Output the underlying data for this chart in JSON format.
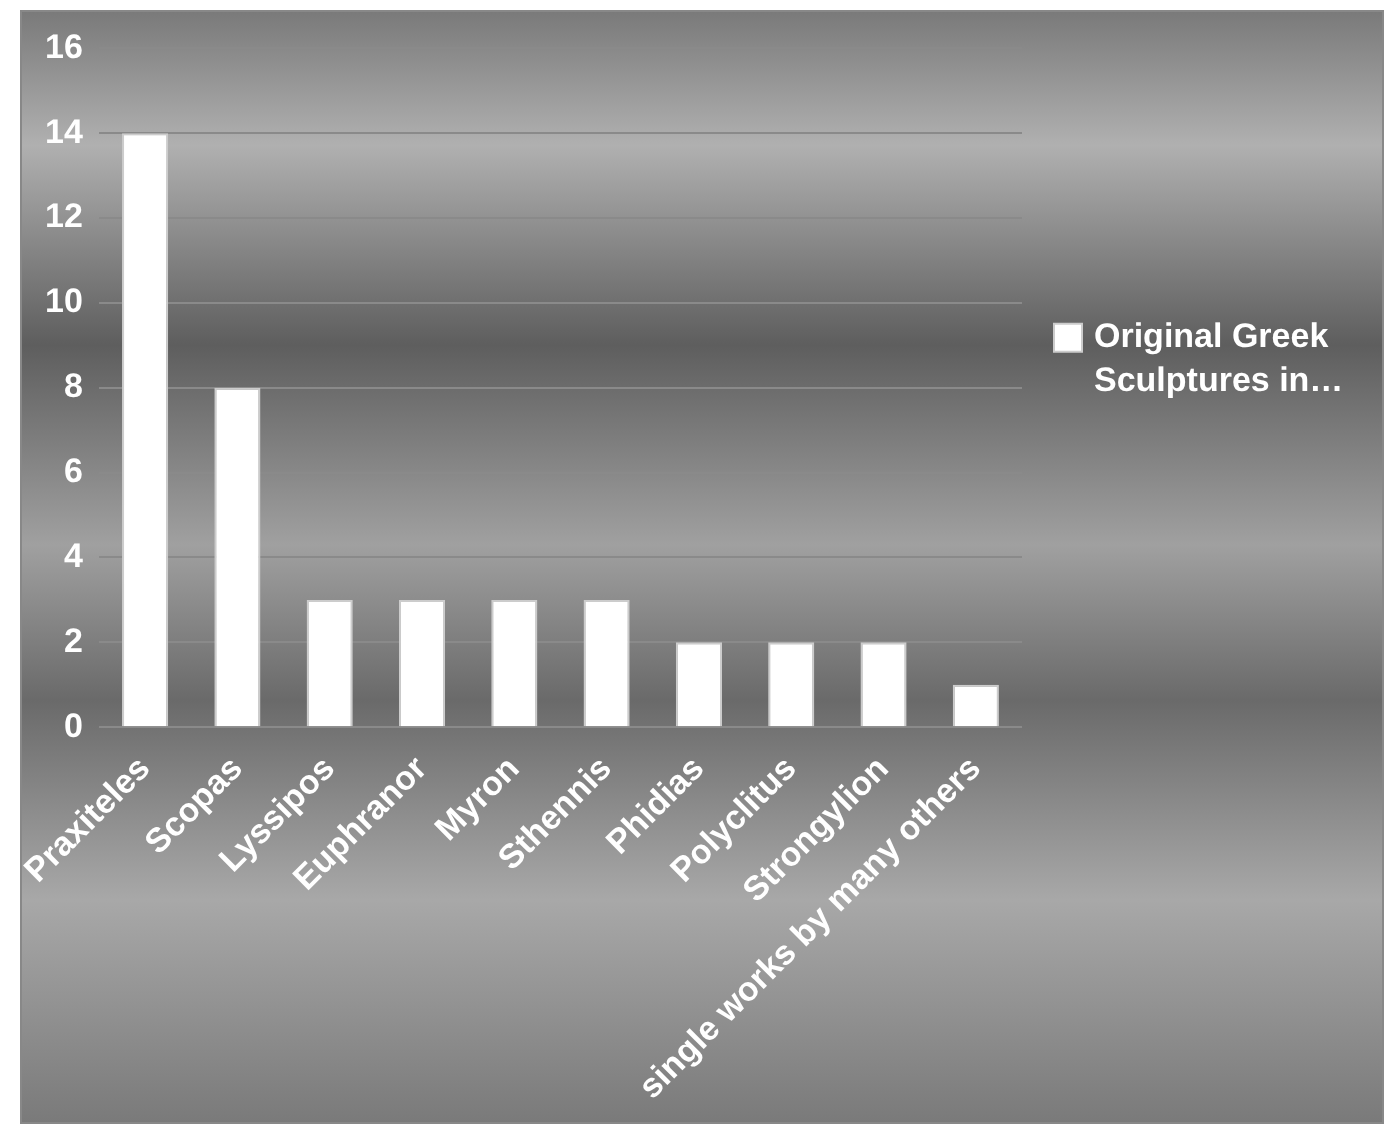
{
  "chart_data": {
    "type": "bar",
    "categories": [
      "Praxiteles",
      "Scopas",
      "Lyssipos",
      "Euphranor",
      "Myron",
      "Sthennis",
      "Phidias",
      "Polyclitus",
      "Strongylion",
      "single works by many others"
    ],
    "series": [
      {
        "name": "Original Greek Sculptures in…",
        "color": "#ffffff",
        "values": [
          14,
          8,
          3,
          3,
          3,
          3,
          2,
          2,
          2,
          1
        ]
      }
    ],
    "ylim": [
      0,
      16
    ],
    "yticks": [
      0,
      2,
      4,
      6,
      8,
      10,
      12,
      14,
      16
    ],
    "grid": "y",
    "legend": "right"
  }
}
